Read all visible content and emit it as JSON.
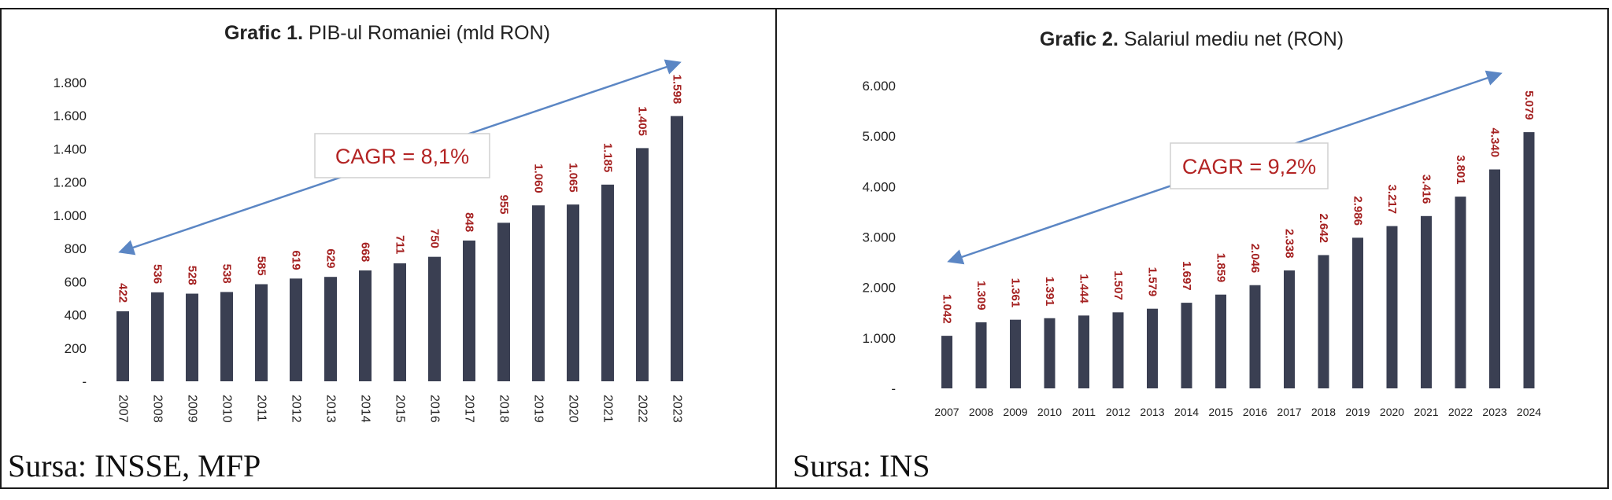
{
  "colors": {
    "bar": "#3a3f52",
    "label": "#a52222",
    "arrow": "#5b86c4",
    "cagr_text": "#b32424"
  },
  "panels": [
    {
      "source": "Sursa: INSSE, MFP"
    },
    {
      "source": "Sursa: INS"
    }
  ],
  "chart_data": [
    {
      "type": "bar",
      "title": "Grafic 1. PIB-ul Romaniei (mld RON)",
      "title_bold": "Grafic 1.",
      "title_rest": " PIB-ul Romaniei (mld RON)",
      "categories": [
        "2007",
        "2008",
        "2009",
        "2010",
        "2011",
        "2012",
        "2013",
        "2014",
        "2015",
        "2016",
        "2017",
        "2018",
        "2019",
        "2020",
        "2021",
        "2022",
        "2023"
      ],
      "values": [
        422,
        536,
        528,
        538,
        585,
        619,
        629,
        668,
        711,
        750,
        848,
        955,
        1060,
        1065,
        1185,
        1405,
        1598
      ],
      "value_labels": [
        "422",
        "536",
        "528",
        "538",
        "585",
        "619",
        "629",
        "668",
        "711",
        "750",
        "848",
        "955",
        "1.060",
        "1.065",
        "1.185",
        "1.405",
        "1.598"
      ],
      "ylim": [
        0,
        1800
      ],
      "yticks": [
        0,
        200,
        400,
        600,
        800,
        1000,
        1200,
        1400,
        1600,
        1800
      ],
      "ytick_labels": [
        "-",
        "200",
        "400",
        "600",
        "800",
        "1.000",
        "1.200",
        "1.400",
        "1.600",
        "1.800"
      ],
      "annotation": "CAGR = 8,1%",
      "xtick_rotation": "vertical",
      "grid": false,
      "legend": "none"
    },
    {
      "type": "bar",
      "title": "Grafic 2. Salariul mediu net (RON)",
      "title_bold": "Grafic 2.",
      "title_rest": " Salariul mediu net (RON)",
      "categories": [
        "2007",
        "2008",
        "2009",
        "2010",
        "2011",
        "2012",
        "2013",
        "2014",
        "2015",
        "2016",
        "2017",
        "2018",
        "2019",
        "2020",
        "2021",
        "2022",
        "2023",
        "2024"
      ],
      "values": [
        1042,
        1309,
        1361,
        1391,
        1444,
        1507,
        1579,
        1697,
        1859,
        2046,
        2338,
        2642,
        2986,
        3217,
        3416,
        3801,
        4340,
        5079
      ],
      "value_labels": [
        "1.042",
        "1.309",
        "1.361",
        "1.391",
        "1.444",
        "1.507",
        "1.579",
        "1.697",
        "1.859",
        "2.046",
        "2.338",
        "2.642",
        "2.986",
        "3.217",
        "3.416",
        "3.801",
        "4.340",
        "5.079"
      ],
      "ylim": [
        0,
        6000
      ],
      "yticks": [
        0,
        1000,
        2000,
        3000,
        4000,
        5000,
        6000
      ],
      "ytick_labels": [
        "-",
        "1.000",
        "2.000",
        "3.000",
        "4.000",
        "5.000",
        "6.000"
      ],
      "annotation": "CAGR = 9,2%",
      "xtick_rotation": "horizontal",
      "grid": false,
      "legend": "none"
    }
  ]
}
